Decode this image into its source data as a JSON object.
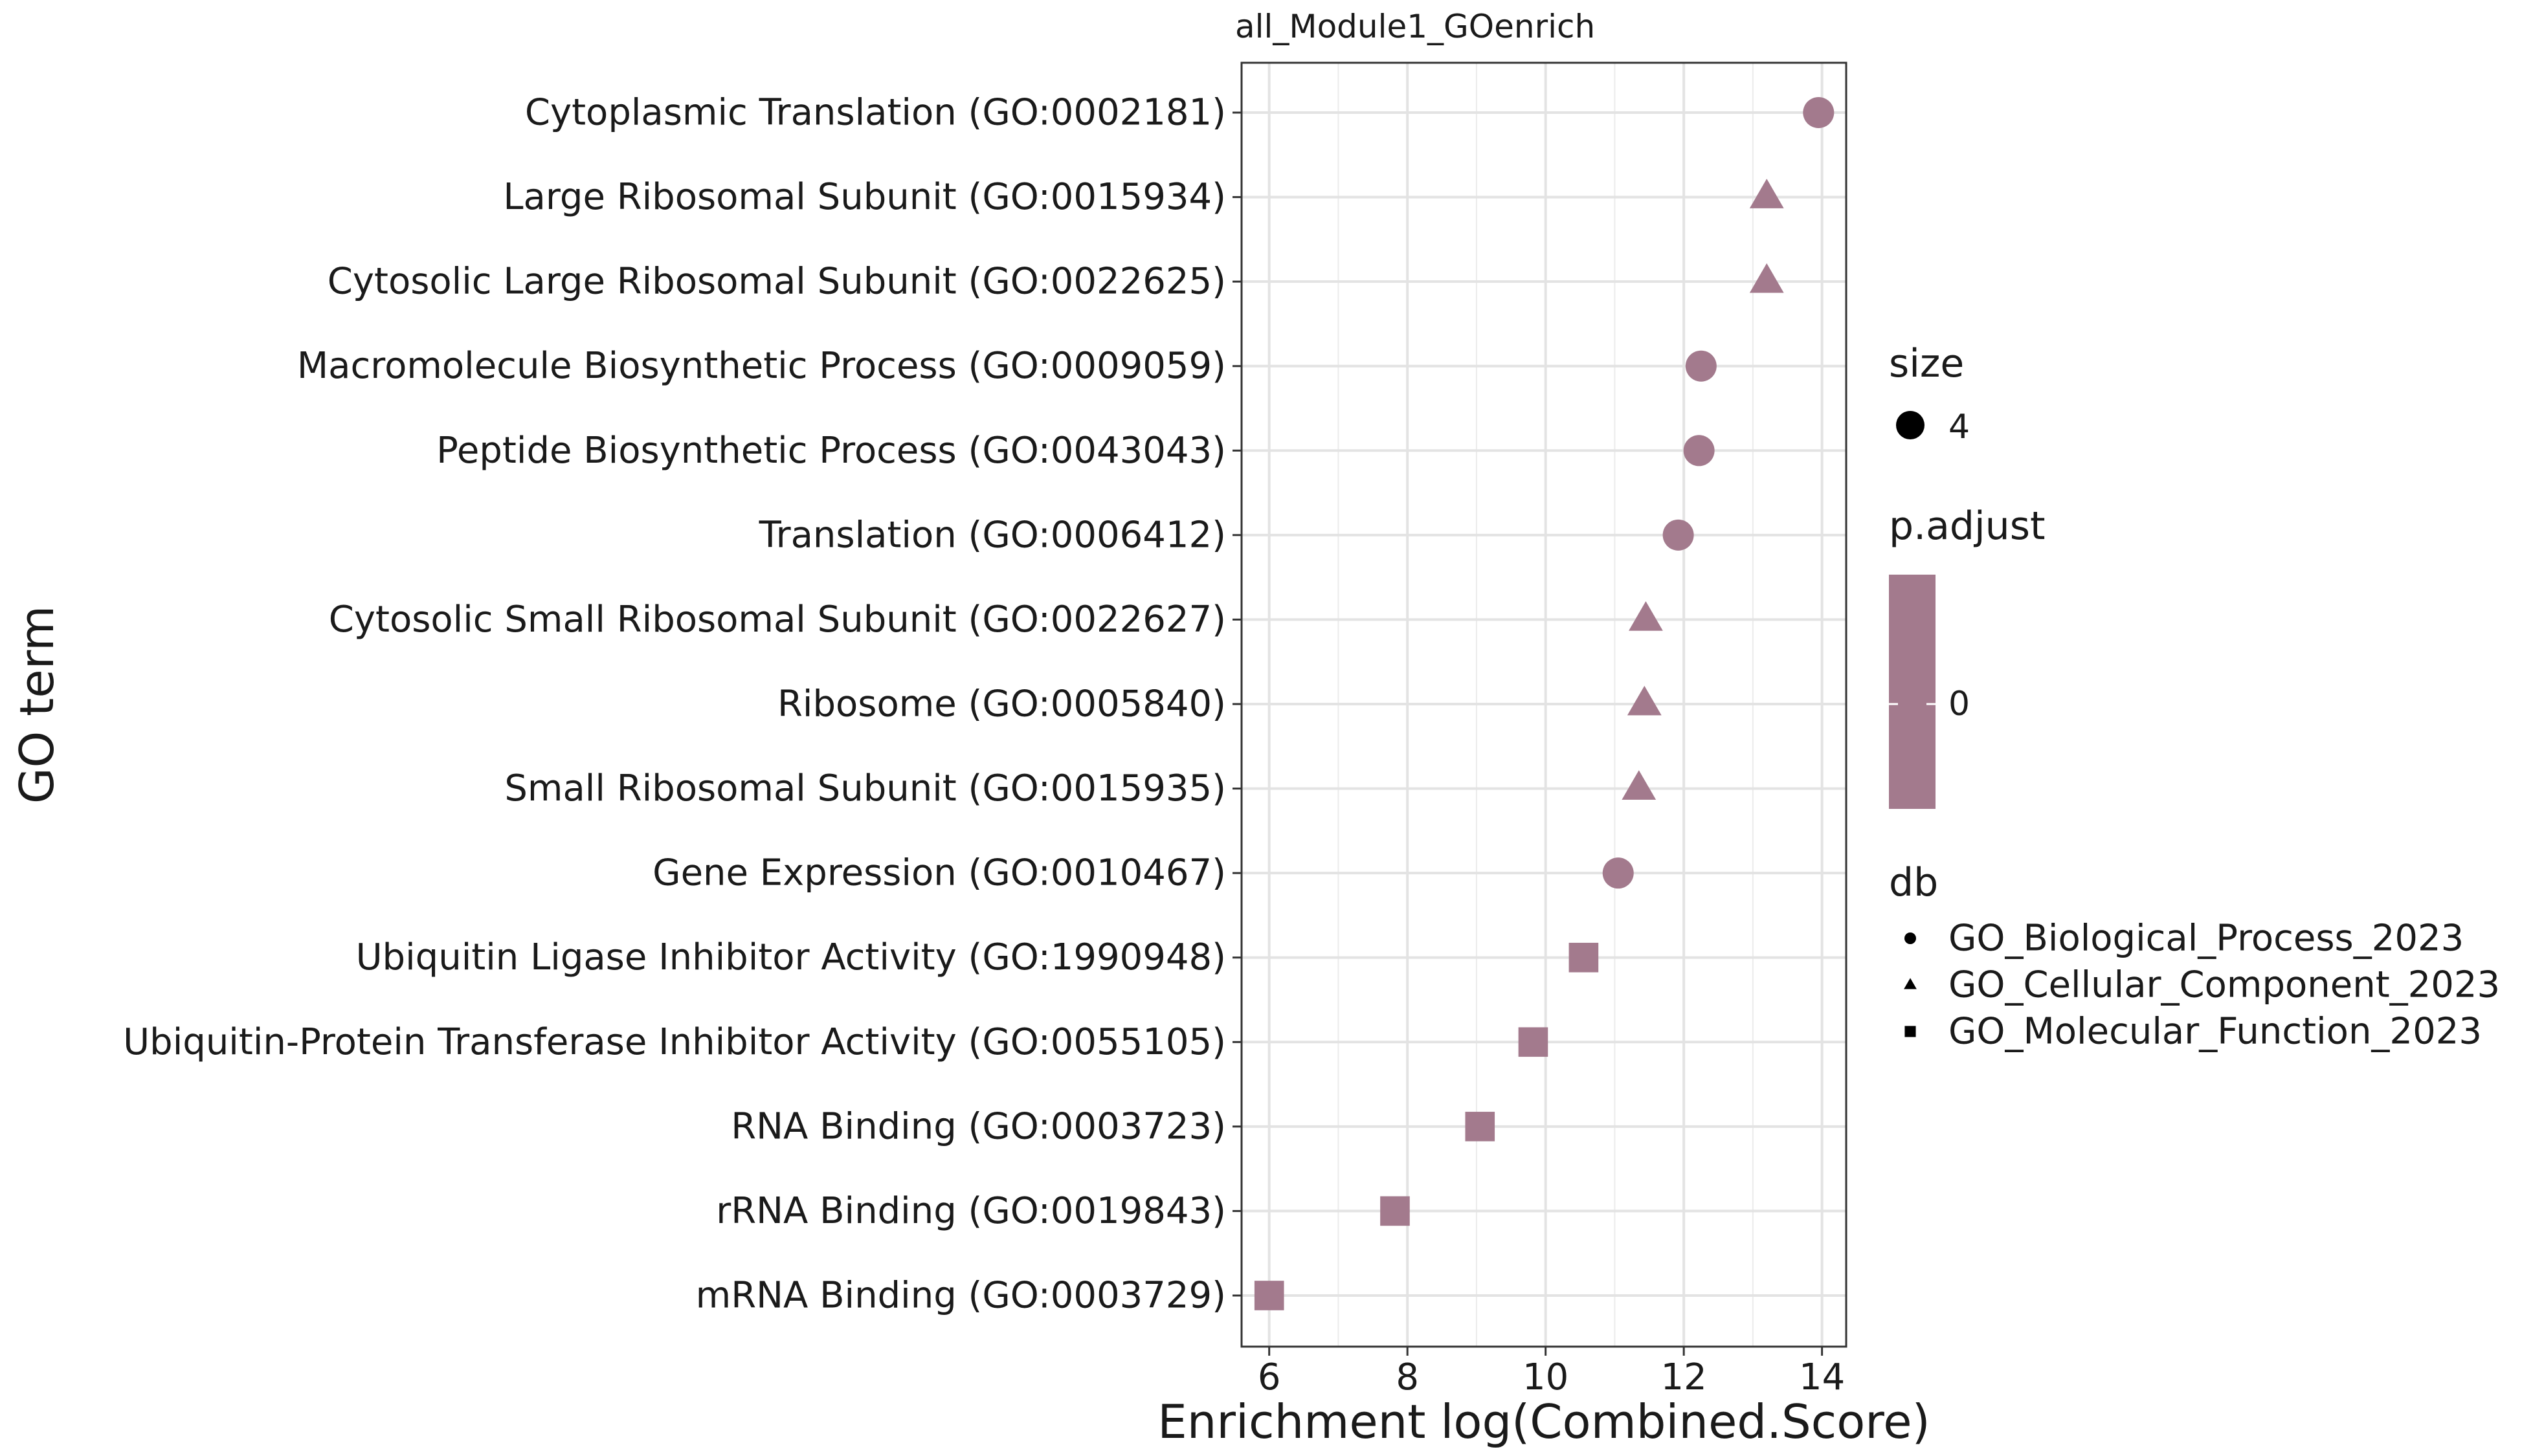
{
  "chart_data": {
    "type": "scatter",
    "title": "all_Module1_GOenrich",
    "xlabel": "Enrichment log(Combined.Score)",
    "ylabel": "GO term",
    "xlim": [
      5.6,
      14.35
    ],
    "x_ticks": [
      6,
      8,
      10,
      12,
      14
    ],
    "grid": true,
    "marker_color": "#a37a8d",
    "categories": [
      "Cytoplasmic Translation (GO:0002181)",
      "Large Ribosomal Subunit (GO:0015934)",
      "Cytosolic Large Ribosomal Subunit (GO:0022625)",
      "Macromolecule Biosynthetic Process (GO:0009059)",
      "Peptide Biosynthetic Process (GO:0043043)",
      "Translation (GO:0006412)",
      "Cytosolic Small Ribosomal Subunit (GO:0022627)",
      "Ribosome (GO:0005840)",
      "Small Ribosomal Subunit (GO:0015935)",
      "Gene Expression (GO:0010467)",
      "Ubiquitin Ligase Inhibitor Activity (GO:1990948)",
      "Ubiquitin-Protein Transferase Inhibitor Activity (GO:0055105)",
      "RNA Binding (GO:0003723)",
      "rRNA Binding (GO:0019843)",
      "mRNA Binding (GO:0003729)"
    ],
    "points": [
      {
        "x": 13.95,
        "db": "GO_Biological_Process_2023"
      },
      {
        "x": 13.2,
        "db": "GO_Cellular_Component_2023"
      },
      {
        "x": 13.2,
        "db": "GO_Cellular_Component_2023"
      },
      {
        "x": 12.25,
        "db": "GO_Biological_Process_2023"
      },
      {
        "x": 12.22,
        "db": "GO_Biological_Process_2023"
      },
      {
        "x": 11.92,
        "db": "GO_Biological_Process_2023"
      },
      {
        "x": 11.45,
        "db": "GO_Cellular_Component_2023"
      },
      {
        "x": 11.43,
        "db": "GO_Cellular_Component_2023"
      },
      {
        "x": 11.35,
        "db": "GO_Cellular_Component_2023"
      },
      {
        "x": 11.05,
        "db": "GO_Biological_Process_2023"
      },
      {
        "x": 10.55,
        "db": "GO_Molecular_Function_2023"
      },
      {
        "x": 9.82,
        "db": "GO_Molecular_Function_2023"
      },
      {
        "x": 9.05,
        "db": "GO_Molecular_Function_2023"
      },
      {
        "x": 7.82,
        "db": "GO_Molecular_Function_2023"
      },
      {
        "x": 6.0,
        "db": "GO_Molecular_Function_2023"
      }
    ],
    "legend": {
      "placement": "right",
      "size": {
        "title": "size",
        "values": [
          "4"
        ]
      },
      "p_adjust": {
        "title": "p.adjust",
        "values": [
          "0"
        ]
      },
      "db": {
        "title": "db",
        "entries": [
          {
            "label": "GO_Biological_Process_2023",
            "shape": "circle"
          },
          {
            "label": "GO_Cellular_Component_2023",
            "shape": "triangle"
          },
          {
            "label": "GO_Molecular_Function_2023",
            "shape": "square"
          }
        ]
      }
    }
  }
}
